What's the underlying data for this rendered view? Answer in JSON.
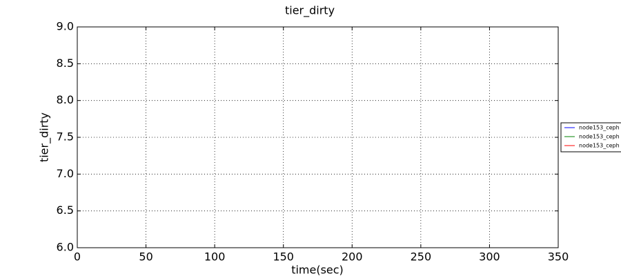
{
  "chart_data": {
    "type": "line",
    "title": "tier_dirty",
    "xlabel": "time(sec)",
    "ylabel": "tier_dirty",
    "x": [
      0,
      312
    ],
    "series": [
      {
        "name": "node153_ceph",
        "color": "#0000ff",
        "values": [
          6,
          6
        ]
      },
      {
        "name": "node153_ceph",
        "color": "#008000",
        "values": [
          6,
          6
        ]
      },
      {
        "name": "node153_ceph",
        "color": "#ff0000",
        "values": [
          6,
          6
        ]
      }
    ],
    "xlim": [
      0,
      350
    ],
    "xticks": [
      0,
      50,
      100,
      150,
      200,
      250,
      300,
      350
    ],
    "ylim": [
      6,
      9
    ],
    "yticks": [
      {
        "value": 6,
        "label": "6.0"
      },
      {
        "value": 6.5,
        "label": "6.5"
      },
      {
        "value": 7,
        "label": "7.0"
      },
      {
        "value": 7.5,
        "label": "7.5"
      },
      {
        "value": 8,
        "label": "8.0"
      },
      {
        "value": 8.5,
        "label": "8.5"
      },
      {
        "value": 9,
        "label": "9.0"
      }
    ],
    "grid": true,
    "legend": "right"
  }
}
